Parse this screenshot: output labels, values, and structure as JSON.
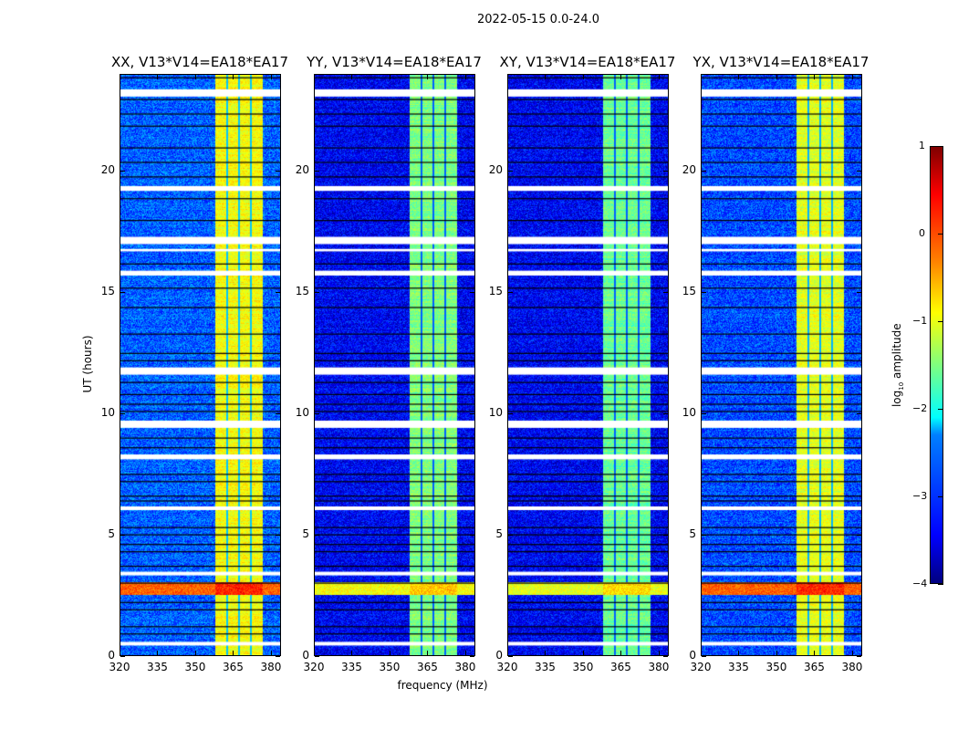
{
  "chart_data": {
    "type": "heatmap",
    "suptitle": "2022-05-15 0.0-24.0",
    "xlabel": "frequency (MHz)",
    "ylabel": "UT (hours)",
    "xlim": [
      320,
      384
    ],
    "ylim": [
      0,
      24
    ],
    "xticks": [
      "320",
      "335",
      "350",
      "365",
      "380"
    ],
    "xtick_values": [
      320,
      335,
      350,
      365,
      380
    ],
    "yticks": [
      "0",
      "5",
      "10",
      "15",
      "20"
    ],
    "ytick_values": [
      0,
      5,
      10,
      15,
      20
    ],
    "colormap": "jet",
    "colorbar": {
      "label_log": "log",
      "label_sub": "10",
      "label_rest": " amplitude",
      "range": [
        -4,
        1
      ],
      "ticks": [
        "1",
        "0",
        "−1",
        "−2",
        "−3",
        "−4"
      ],
      "tick_values": [
        1,
        0,
        -1,
        -2,
        -3,
        -4
      ]
    },
    "band_mhz": [
      358,
      377
    ],
    "subband_edges_mhz": [
      362.5,
      367.3,
      372.2
    ],
    "flagged_hours": [
      [
        23.1,
        23.4
      ],
      [
        19.2,
        19.4
      ],
      [
        17.0,
        17.3
      ],
      [
        16.7,
        16.8
      ],
      [
        15.7,
        15.9
      ],
      [
        11.6,
        11.9
      ],
      [
        9.4,
        9.7
      ],
      [
        8.1,
        8.3
      ],
      [
        6.0,
        6.15
      ],
      [
        3.3,
        3.45
      ],
      [
        0.4,
        0.55
      ]
    ],
    "gap_line_hours": [
      23.9,
      23.0,
      22.4,
      21.9,
      21.0,
      20.4,
      19.8,
      18.9,
      18.0,
      16.2,
      15.2,
      14.4,
      13.3,
      12.5,
      12.2,
      11.3,
      10.8,
      10.4,
      10.1,
      9.0,
      8.6,
      7.5,
      7.2,
      6.6,
      6.4,
      5.3,
      5.0,
      4.6,
      4.3,
      3.7,
      3.0,
      2.2,
      1.9,
      1.2,
      0.9
    ],
    "rfi_hours": [
      2.5,
      3.05
    ],
    "panels": [
      {
        "title": "XX, V13*V14=EA18*EA17",
        "background_level": -2.9,
        "band_level": -0.9,
        "rfi_level": 0.2
      },
      {
        "title": "YY, V13*V14=EA18*EA17",
        "background_level": -3.4,
        "band_level": -1.5,
        "rfi_level": -0.6
      },
      {
        "title": "XY, V13*V14=EA18*EA17",
        "background_level": -3.4,
        "band_level": -1.6,
        "rfi_level": -0.7
      },
      {
        "title": "YX, V13*V14=EA18*EA17",
        "background_level": -3.0,
        "band_level": -1.0,
        "rfi_level": 0.2
      }
    ]
  }
}
